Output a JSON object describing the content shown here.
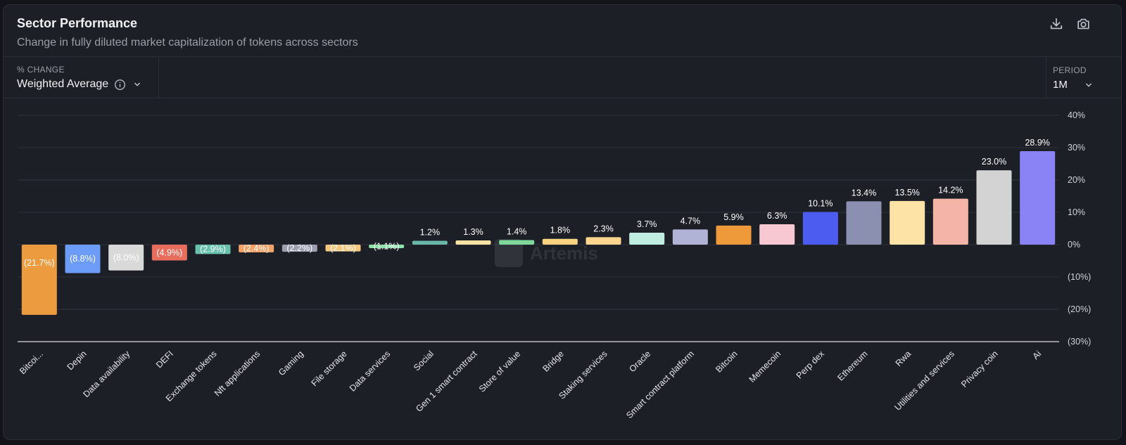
{
  "header": {
    "title": "Sector Performance",
    "subtitle": "Change in fully diluted market capitalization of tokens across sectors"
  },
  "controls": {
    "change_label": "% CHANGE",
    "change_value": "Weighted Average",
    "period_label": "PERIOD",
    "period_value": "1M"
  },
  "watermark": "Artemis",
  "icons": [
    "download-icon",
    "camera-icon",
    "info-icon",
    "chevron-down-icon"
  ],
  "chart_data": {
    "type": "bar",
    "categories": [
      "Bitcoi...",
      "Depin",
      "Data availability",
      "DEFI",
      "Exchange tokens",
      "Nft applications",
      "Gaming",
      "File storage",
      "Data services",
      "Social",
      "Gen 1 smart contract",
      "Store of value",
      "Bridge",
      "Staking services",
      "Oracle",
      "Smart contract platform",
      "Bitcoin",
      "Memecoin",
      "Perp dex",
      "Ethereum",
      "Rwa",
      "Utilities and services",
      "Privacy coin",
      "Ai"
    ],
    "values": [
      -21.7,
      -8.8,
      -8.0,
      -4.9,
      -2.9,
      -2.4,
      -2.2,
      -2.1,
      -1.1,
      1.2,
      1.3,
      1.4,
      1.8,
      2.3,
      3.7,
      4.7,
      5.9,
      6.3,
      10.1,
      13.4,
      13.5,
      14.2,
      23.0,
      28.9
    ],
    "data_labels": [
      "(21.7%)",
      "(8.8%)",
      "(8.0%)",
      "(4.9%)",
      "(2.9%)",
      "(2.4%)",
      "(2.2%)",
      "(2.1%)",
      "(1.1%)",
      "1.2%",
      "1.3%",
      "1.4%",
      "1.8%",
      "2.3%",
      "3.7%",
      "4.7%",
      "5.9%",
      "6.3%",
      "10.1%",
      "13.4%",
      "13.5%",
      "14.2%",
      "23.0%",
      "28.9%"
    ],
    "colors": [
      "#ec9b3f",
      "#6c9cf8",
      "#d9d9d9",
      "#e86d5d",
      "#68c1ad",
      "#f2a267",
      "#9b9fb0",
      "#f6c77f",
      "#8fe3a9",
      "#6ab8a8",
      "#fde2a4",
      "#7fd99a",
      "#f9d37f",
      "#fdd58d",
      "#bfeee0",
      "#b1b3d6",
      "#ef9a3a",
      "#f8c8d2",
      "#4d5cf0",
      "#8c90b0",
      "#fee3a6",
      "#f4b5a8",
      "#d3d3d3",
      "#8a83f5"
    ],
    "yticks": [
      "40%",
      "30%",
      "20%",
      "10%",
      "0%",
      "(10%)",
      "(20%)",
      "(30%)"
    ],
    "ylim": [
      -30,
      40
    ],
    "ylabel": "",
    "xlabel": "",
    "grid": true
  }
}
